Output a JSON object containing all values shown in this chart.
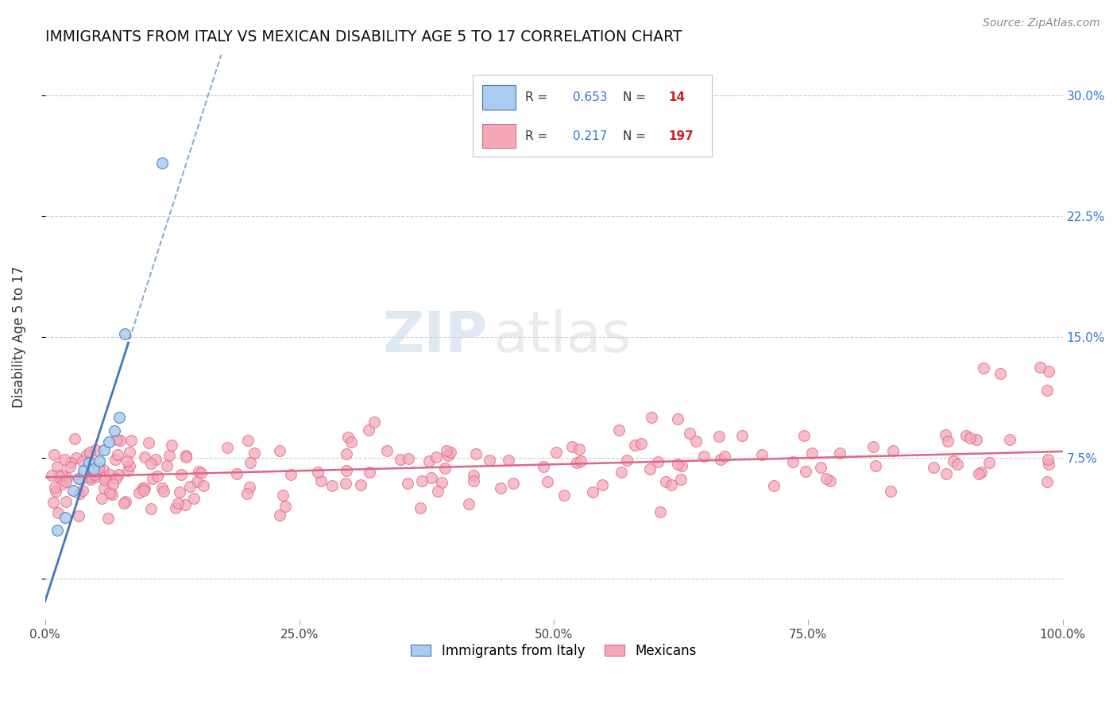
{
  "title": "IMMIGRANTS FROM ITALY VS MEXICAN DISABILITY AGE 5 TO 17 CORRELATION CHART",
  "source_text": "Source: ZipAtlas.com",
  "ylabel": "Disability Age 5 to 17",
  "xlim": [
    0.0,
    1.0
  ],
  "ylim": [
    -0.025,
    0.325
  ],
  "yticks": [
    0.0,
    0.075,
    0.15,
    0.225,
    0.3
  ],
  "ytick_labels": [
    "",
    "7.5%",
    "15.0%",
    "22.5%",
    "30.0%"
  ],
  "xticks": [
    0.0,
    0.25,
    0.5,
    0.75,
    1.0
  ],
  "xtick_labels": [
    "0.0%",
    "25.0%",
    "50.0%",
    "75.0%",
    "100.0%"
  ],
  "italy_R": 0.653,
  "italy_N": 14,
  "mexico_R": 0.217,
  "mexico_N": 197,
  "italy_color": "#aaccee",
  "mexico_color": "#f4a8b8",
  "italy_line_color": "#4477bb",
  "mexico_line_color": "#dd6688",
  "background_color": "#ffffff",
  "grid_color": "#cccccc",
  "title_color": "#111111",
  "legend_R_color": "#3377cc",
  "legend_N_color": "#cc2222"
}
